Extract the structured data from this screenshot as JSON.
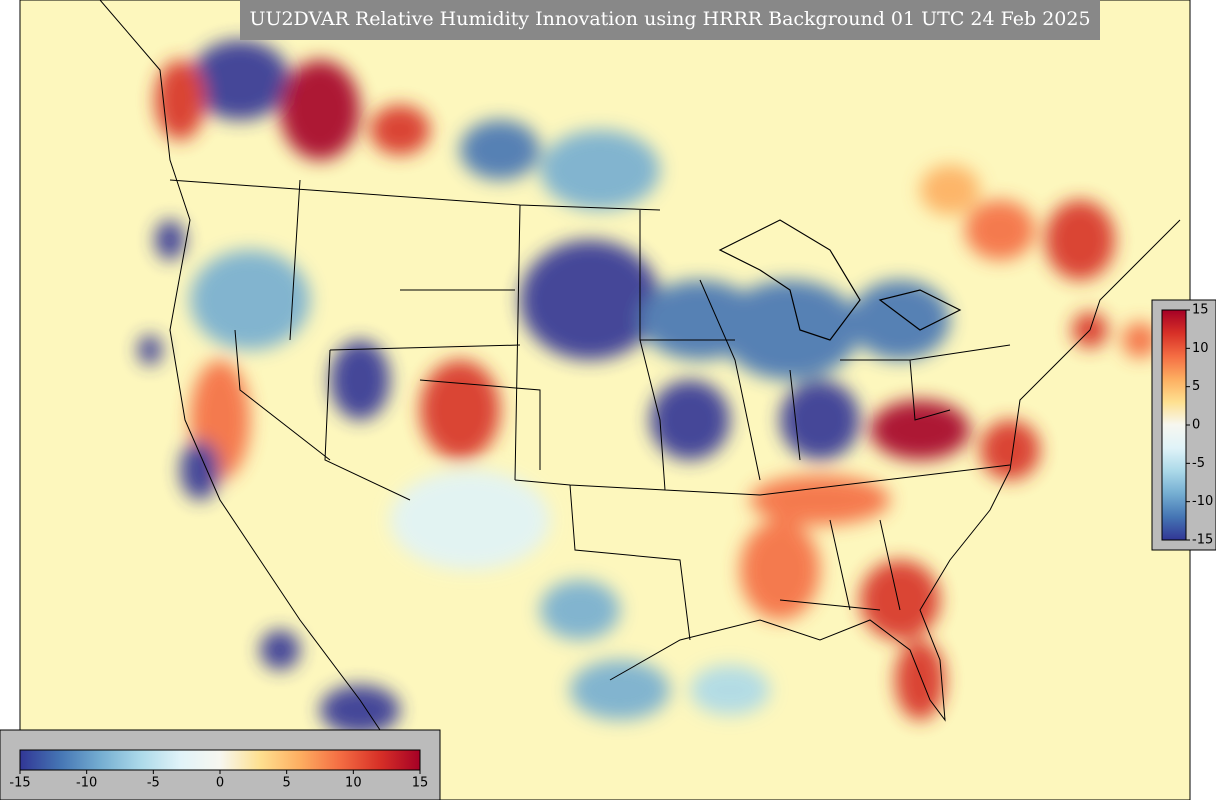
{
  "title": "UU2DVAR Relative Humidity Innovation using HRRR Background 01 UTC 24 Feb 2025",
  "colormap": {
    "range": [
      -15,
      15
    ],
    "colors": [
      "#313695",
      "#4575b4",
      "#74add1",
      "#abd9e9",
      "#e0f3f8",
      "#f7f7f0",
      "#fee090",
      "#fdae61",
      "#f46d43",
      "#d73027",
      "#a50026"
    ]
  },
  "colorbars": [
    {
      "orientation": "horizontal",
      "ticks": [
        -15,
        -10,
        -5,
        0,
        5,
        10,
        15
      ]
    },
    {
      "orientation": "vertical",
      "ticks": [
        -15,
        -10,
        -5,
        0,
        5,
        10,
        15
      ]
    }
  ]
}
